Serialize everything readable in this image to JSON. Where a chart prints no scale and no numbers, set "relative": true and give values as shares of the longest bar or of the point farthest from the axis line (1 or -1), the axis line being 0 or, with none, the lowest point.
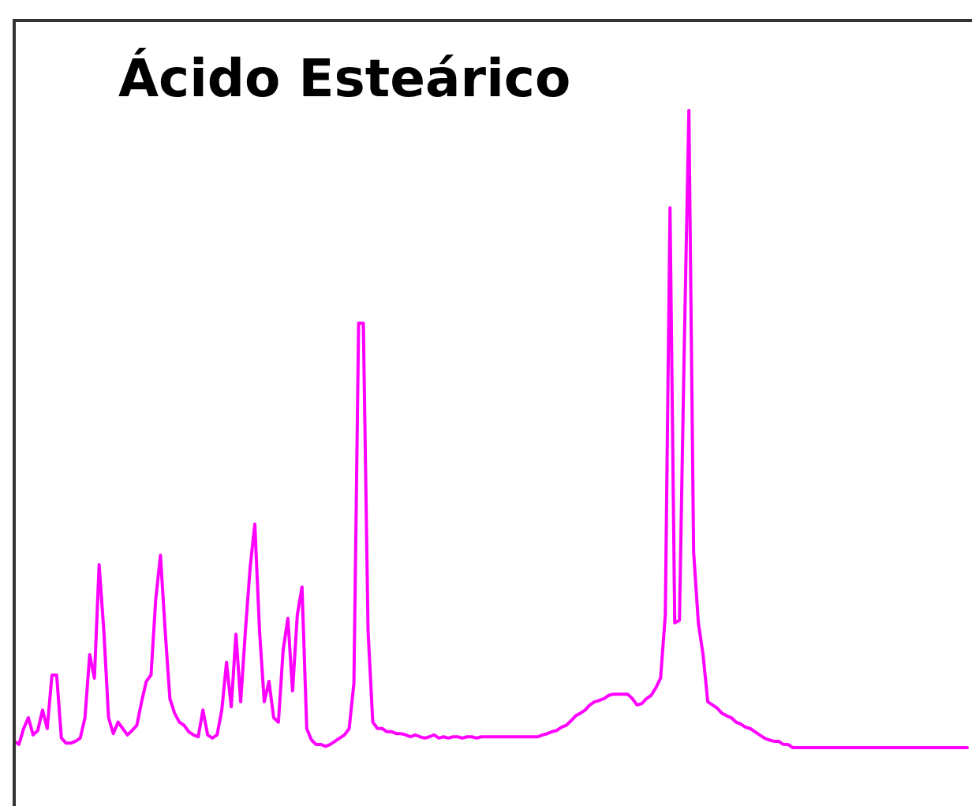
{
  "chart_data": {
    "type": "line",
    "title": "Ácido Esteárico",
    "relative": true,
    "color": "#ff00ff",
    "marker": "none",
    "line_style": "solid",
    "categories": [
      null,
      null,
      null,
      null,
      null,
      null,
      null,
      null,
      null,
      null,
      null,
      null,
      null,
      null,
      null,
      null,
      null,
      null,
      null,
      null,
      null,
      null,
      null,
      null,
      null,
      null,
      null,
      null,
      null,
      null,
      null,
      null,
      null,
      null,
      null,
      null,
      null,
      null,
      null,
      null,
      null,
      null,
      null,
      null,
      null,
      null,
      null,
      null,
      null,
      null,
      null,
      null,
      null,
      null,
      null,
      null,
      null,
      null,
      null,
      null,
      null,
      null,
      null,
      null,
      null,
      null,
      null,
      null,
      null,
      null,
      null,
      null,
      null,
      null,
      null,
      null,
      null,
      null,
      null,
      null,
      null,
      null,
      null,
      null,
      null,
      null,
      null,
      null,
      null,
      null,
      null,
      null,
      null,
      null,
      null,
      null,
      null,
      null,
      null,
      null,
      null,
      null,
      null,
      null,
      null,
      null,
      null,
      null,
      null,
      null,
      null,
      null,
      null,
      null,
      null,
      null,
      null,
      null,
      null,
      null,
      null,
      null,
      null,
      null,
      null,
      null,
      null,
      null,
      null,
      null,
      null,
      null,
      null,
      null,
      null,
      null,
      null,
      null,
      null,
      null,
      null,
      null,
      null,
      null,
      null,
      null,
      null,
      null,
      null,
      null,
      null,
      null,
      null,
      null,
      null,
      null,
      null,
      null,
      null,
      null,
      null,
      null,
      null,
      null,
      null,
      null,
      null,
      null,
      null,
      null,
      null,
      null,
      null,
      null,
      null,
      null,
      null,
      null,
      null,
      null,
      null,
      null,
      null,
      null,
      null,
      null,
      null,
      null,
      null,
      null,
      null,
      null,
      null,
      null,
      null,
      null,
      null,
      null,
      null,
      null,
      null,
      null,
      null
    ],
    "values": [
      0.01,
      0.005,
      0.03,
      0.047,
      0.02,
      0.027,
      0.059,
      0.03,
      0.114,
      0.114,
      0.015,
      0.007,
      0.007,
      0.01,
      0.015,
      0.047,
      0.146,
      0.109,
      0.287,
      0.183,
      0.047,
      0.022,
      0.04,
      0.03,
      0.02,
      0.027,
      0.035,
      0.072,
      0.104,
      0.114,
      0.233,
      0.302,
      0.183,
      0.077,
      0.054,
      0.04,
      0.035,
      0.025,
      0.02,
      0.017,
      0.059,
      0.02,
      0.015,
      0.02,
      0.059,
      0.134,
      0.064,
      0.178,
      0.072,
      0.183,
      0.282,
      0.351,
      0.183,
      0.072,
      0.104,
      0.047,
      0.04,
      0.153,
      0.203,
      0.089,
      0.208,
      0.252,
      0.03,
      0.012,
      0.005,
      0.005,
      0.002,
      0.005,
      0.01,
      0.015,
      0.02,
      0.03,
      0.101,
      0.666,
      0.666,
      0.183,
      0.04,
      0.03,
      0.03,
      0.025,
      0.025,
      0.022,
      0.022,
      0.02,
      0.017,
      0.02,
      0.017,
      0.015,
      0.017,
      0.02,
      0.015,
      0.017,
      0.015,
      0.017,
      0.017,
      0.015,
      0.017,
      0.017,
      0.015,
      0.017,
      0.017,
      0.017,
      0.017,
      0.017,
      0.017,
      0.017,
      0.017,
      0.017,
      0.017,
      0.017,
      0.017,
      0.017,
      0.02,
      0.022,
      0.025,
      0.027,
      0.032,
      0.035,
      0.042,
      0.05,
      0.054,
      0.059,
      0.067,
      0.072,
      0.074,
      0.077,
      0.082,
      0.084,
      0.084,
      0.084,
      0.084,
      0.077,
      0.067,
      0.069,
      0.077,
      0.082,
      0.094,
      0.109,
      0.208,
      0.847,
      0.196,
      0.2,
      0.621,
      1.0,
      0.307,
      0.196,
      0.146,
      0.072,
      0.067,
      0.062,
      0.054,
      0.05,
      0.047,
      0.04,
      0.037,
      0.032,
      0.03,
      0.025,
      0.02,
      0.015,
      0.012,
      0.01,
      0.01,
      0.005,
      0.005,
      0,
      0,
      0,
      0,
      0,
      0,
      0,
      0,
      0,
      0,
      0,
      0,
      0,
      0,
      0,
      0,
      0,
      0,
      0,
      0,
      0,
      0,
      0,
      0,
      0,
      0,
      0,
      0,
      0,
      0,
      0,
      0,
      0,
      0,
      0,
      0,
      0,
      0
    ]
  }
}
